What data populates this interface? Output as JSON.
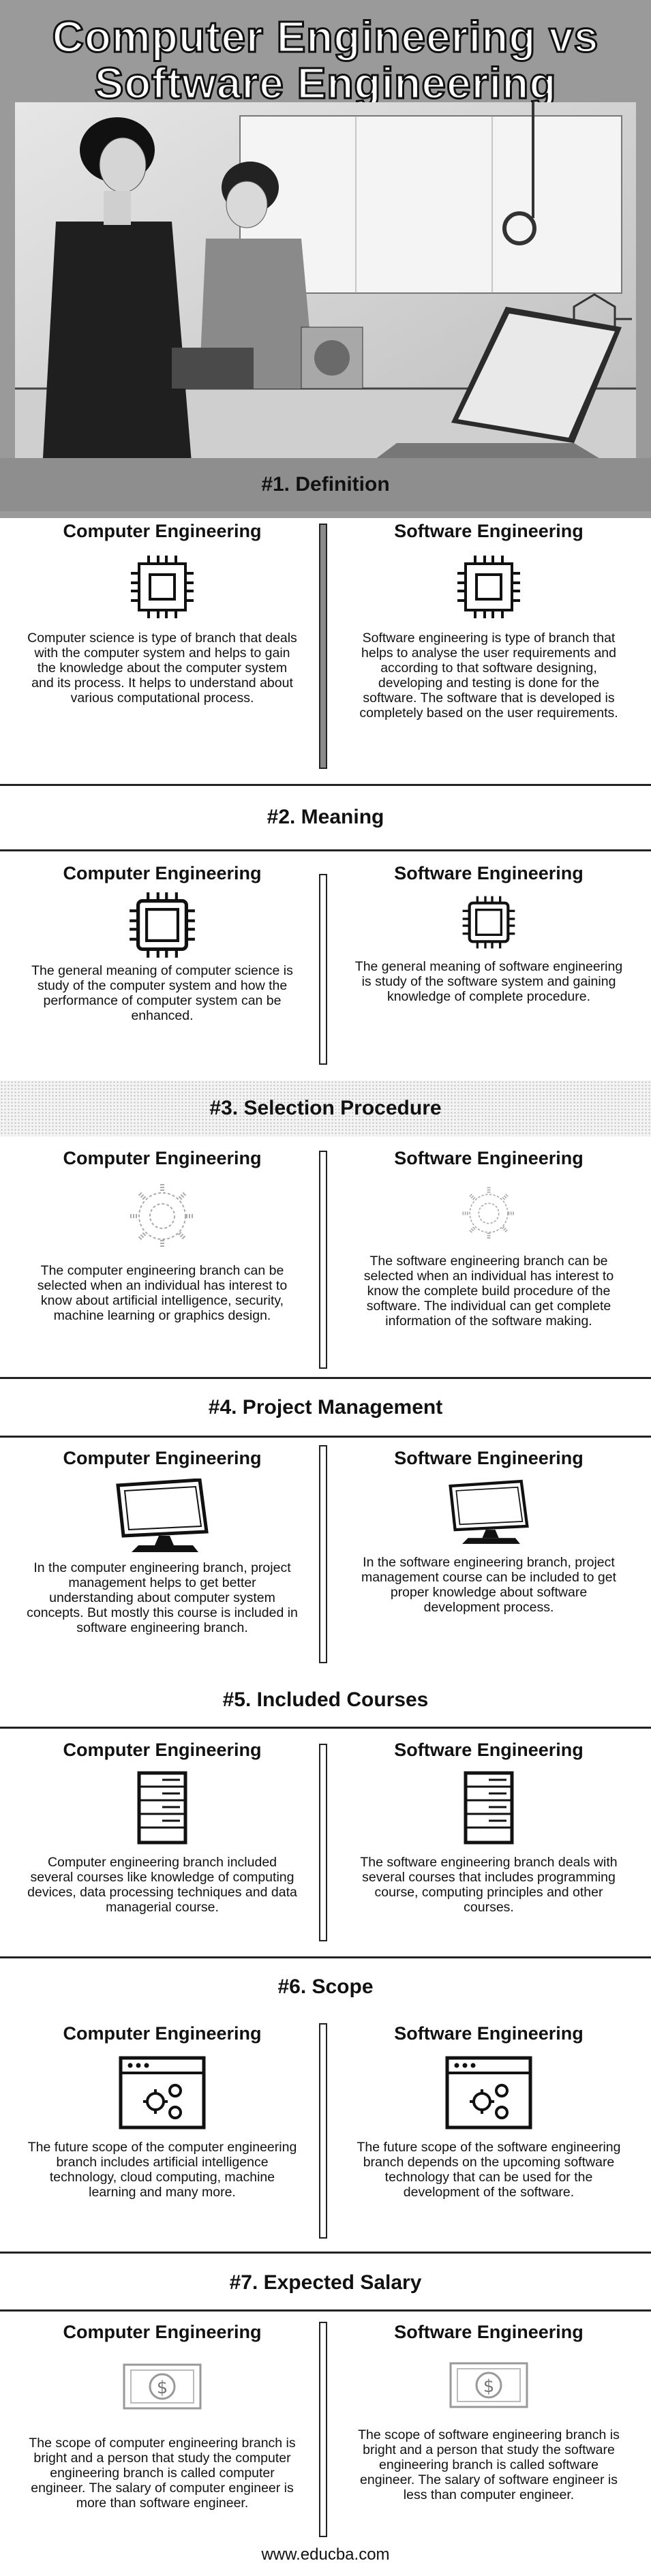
{
  "title_line1": "Computer Engineering vs",
  "title_line2": "Software Engineering",
  "columns": {
    "left": "Computer Engineering",
    "right": "Software Engineering"
  },
  "sections": [
    {
      "heading": "#1. Definition",
      "left": "Computer science is type of branch that deals with the computer system and helps to gain the knowledge about the computer system and its process. It helps to understand about various computational process.",
      "right": "Software engineering is type of branch that helps to analyse the user requirements and according to that software designing, developing and testing is done for the software. The software that is developed is completely based on the user requirements.",
      "icon": "cpu-chip-icon"
    },
    {
      "heading": "#2. Meaning",
      "left": "The general meaning of computer science is study of the computer system and how the performance of computer system can be enhanced.",
      "right": "The general meaning of software engineering is study of the software system and gaining knowledge of complete procedure.",
      "icon": "cpu-chip-icon"
    },
    {
      "heading": "#3. Selection Procedure",
      "left": "The computer engineering branch can be selected when an individual has interest to know about artificial intelligence, security, machine learning or graphics design.",
      "right": "The software engineering branch can be selected when an individual has interest to know the complete build procedure of the software. The individual can get complete information of the software making.",
      "icon": "gear-icon"
    },
    {
      "heading": "#4. Project Management",
      "left": "In the computer engineering branch, project management helps to get better understanding about computer system concepts. But mostly this course is included in software engineering branch.",
      "right": "In the software engineering branch, project management course can be included to get proper knowledge about software development process.",
      "icon": "monitor-icon"
    },
    {
      "heading": "#5. Included Courses",
      "left": "Computer engineering branch included several courses like knowledge of computing devices, data processing techniques and data managerial course.",
      "right": "The software engineering branch deals with several courses that includes programming course, computing principles and other courses.",
      "icon": "server-icon"
    },
    {
      "heading": "#6. Scope",
      "left": "The future scope of the computer engineering branch includes artificial intelligence technology, cloud computing, machine learning and many more.",
      "right": "The future scope of the software engineering branch depends on the upcoming software technology that can be used for the development of the software.",
      "icon": "browser-settings-icon"
    },
    {
      "heading": "#7. Expected Salary",
      "left": "The scope of computer engineering branch is bright and a person that study the computer engineering branch is called computer engineer. The salary of computer engineer is more than software engineer.",
      "right": "The scope of software engineering branch is bright and a person that study the software engineering branch is called software engineer. The salary of software engineer is less than computer engineer.",
      "icon": "dollar-bill-icon"
    }
  ],
  "footer": "www.educba.com"
}
